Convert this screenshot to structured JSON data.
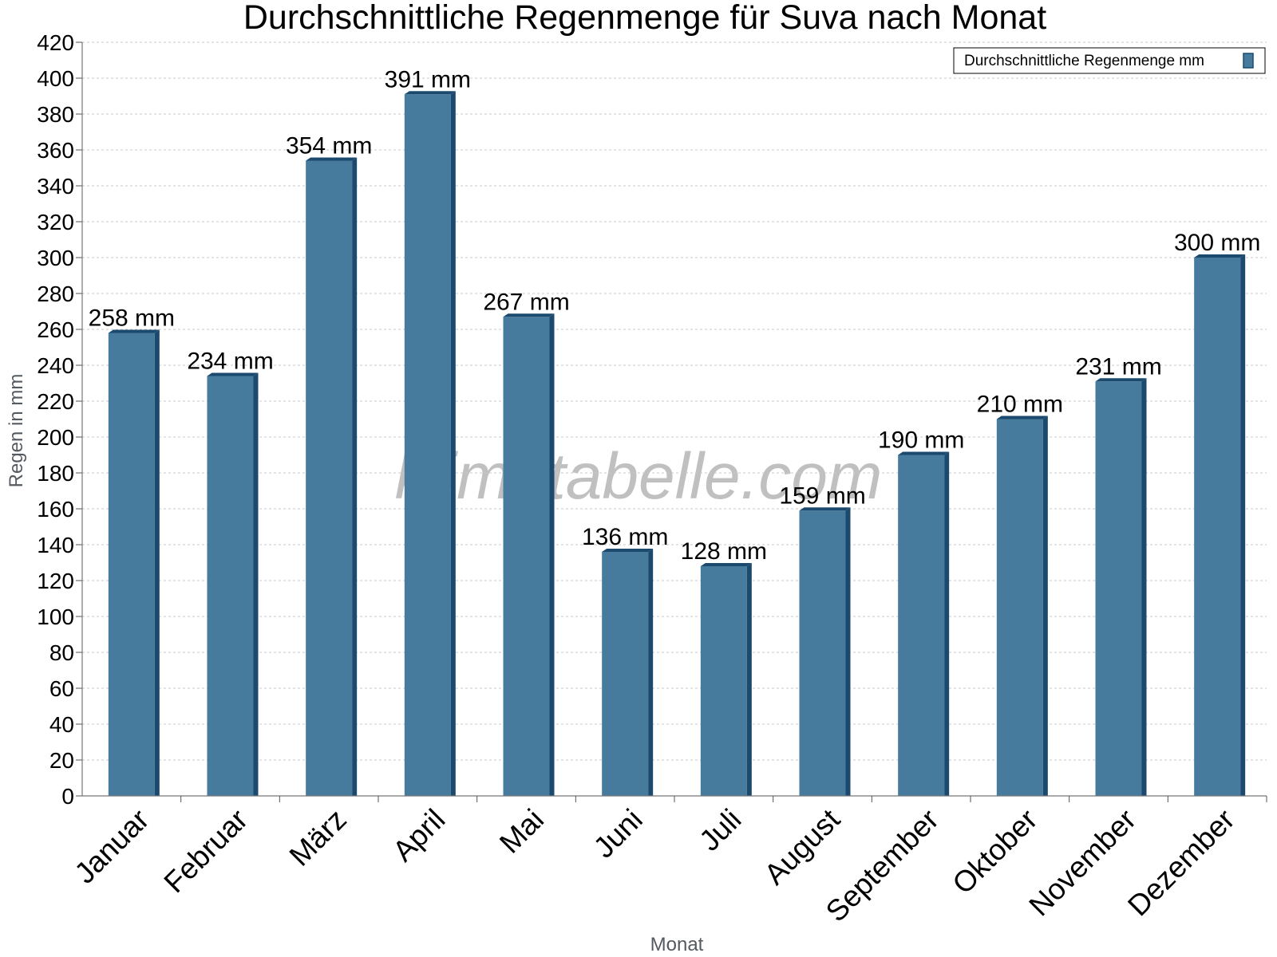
{
  "chart_data": {
    "type": "bar",
    "title": "Durchschnittliche Regenmenge für Suva nach Monat",
    "xlabel": "Monat",
    "ylabel": "Regen in mm",
    "ylim": [
      0,
      420
    ],
    "ytick_step": 20,
    "grid": true,
    "legend_position": "top-right",
    "categories": [
      "Januar",
      "Februar",
      "März",
      "April",
      "Mai",
      "Juni",
      "Juli",
      "August",
      "September",
      "Oktober",
      "November",
      "Dezember"
    ],
    "series": [
      {
        "name": "Durchschnittliche Regenmenge mm",
        "values": [
          258,
          234,
          354,
          391,
          267,
          136,
          128,
          159,
          190,
          210,
          231,
          300
        ],
        "labels": [
          "258 mm",
          "234 mm",
          "354 mm",
          "391 mm",
          "267 mm",
          "136 mm",
          "128 mm",
          "159 mm",
          "190 mm",
          "210 mm",
          "231 mm",
          "300 mm"
        ]
      }
    ],
    "colors": {
      "bar": "#467b9d",
      "bar_side": "#1c4a6e",
      "grid": "#c8c8c8"
    },
    "watermark": "klimatabelle.com"
  }
}
